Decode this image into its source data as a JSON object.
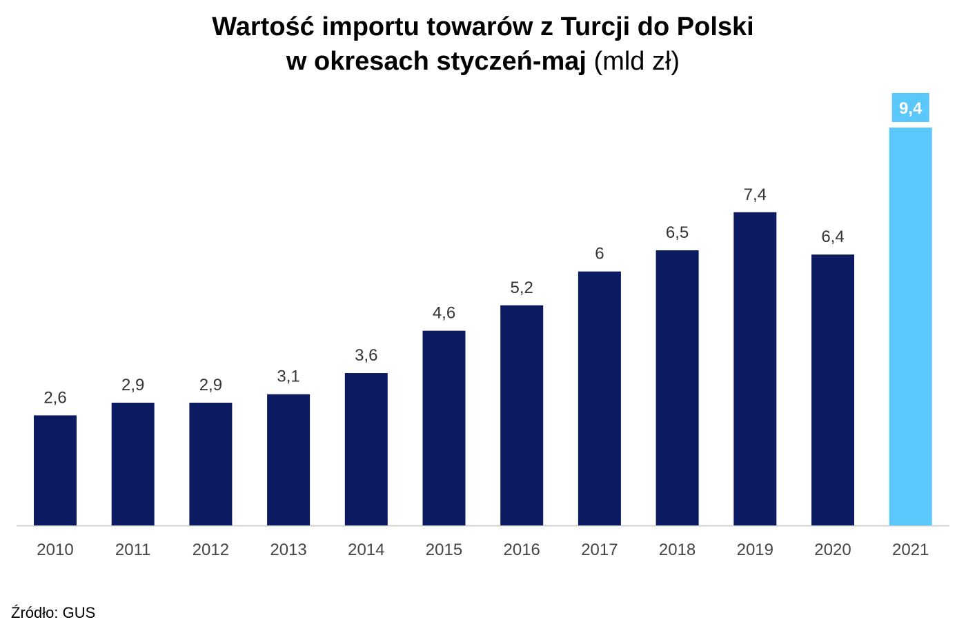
{
  "chart_data": {
    "type": "bar",
    "title_line1": "Wartość importu towarów z Turcji do Polski",
    "title_line2_bold": "w okresach styczeń-maj",
    "title_line2_unit": "(mld zł)",
    "categories": [
      "2010",
      "2011",
      "2012",
      "2013",
      "2014",
      "2015",
      "2016",
      "2017",
      "2018",
      "2019",
      "2020",
      "2021"
    ],
    "values": [
      2.6,
      2.9,
      2.9,
      3.1,
      3.6,
      4.6,
      5.2,
      6,
      6.5,
      7.4,
      6.4,
      9.4
    ],
    "data_labels": [
      "2,6",
      "2,9",
      "2,9",
      "3,1",
      "3,6",
      "4,6",
      "5,2",
      "6",
      "6,5",
      "7,4",
      "6,4",
      "9,4"
    ],
    "highlight_index": 11,
    "ylim": [
      0,
      9.4
    ],
    "grid": false,
    "xlabel": "",
    "ylabel": "",
    "colors": {
      "bar": "#0c1a62",
      "highlight": "#5ac8fa",
      "label": "#333333",
      "axis": "#d0d0d0"
    }
  },
  "source": "Źródło: GUS"
}
